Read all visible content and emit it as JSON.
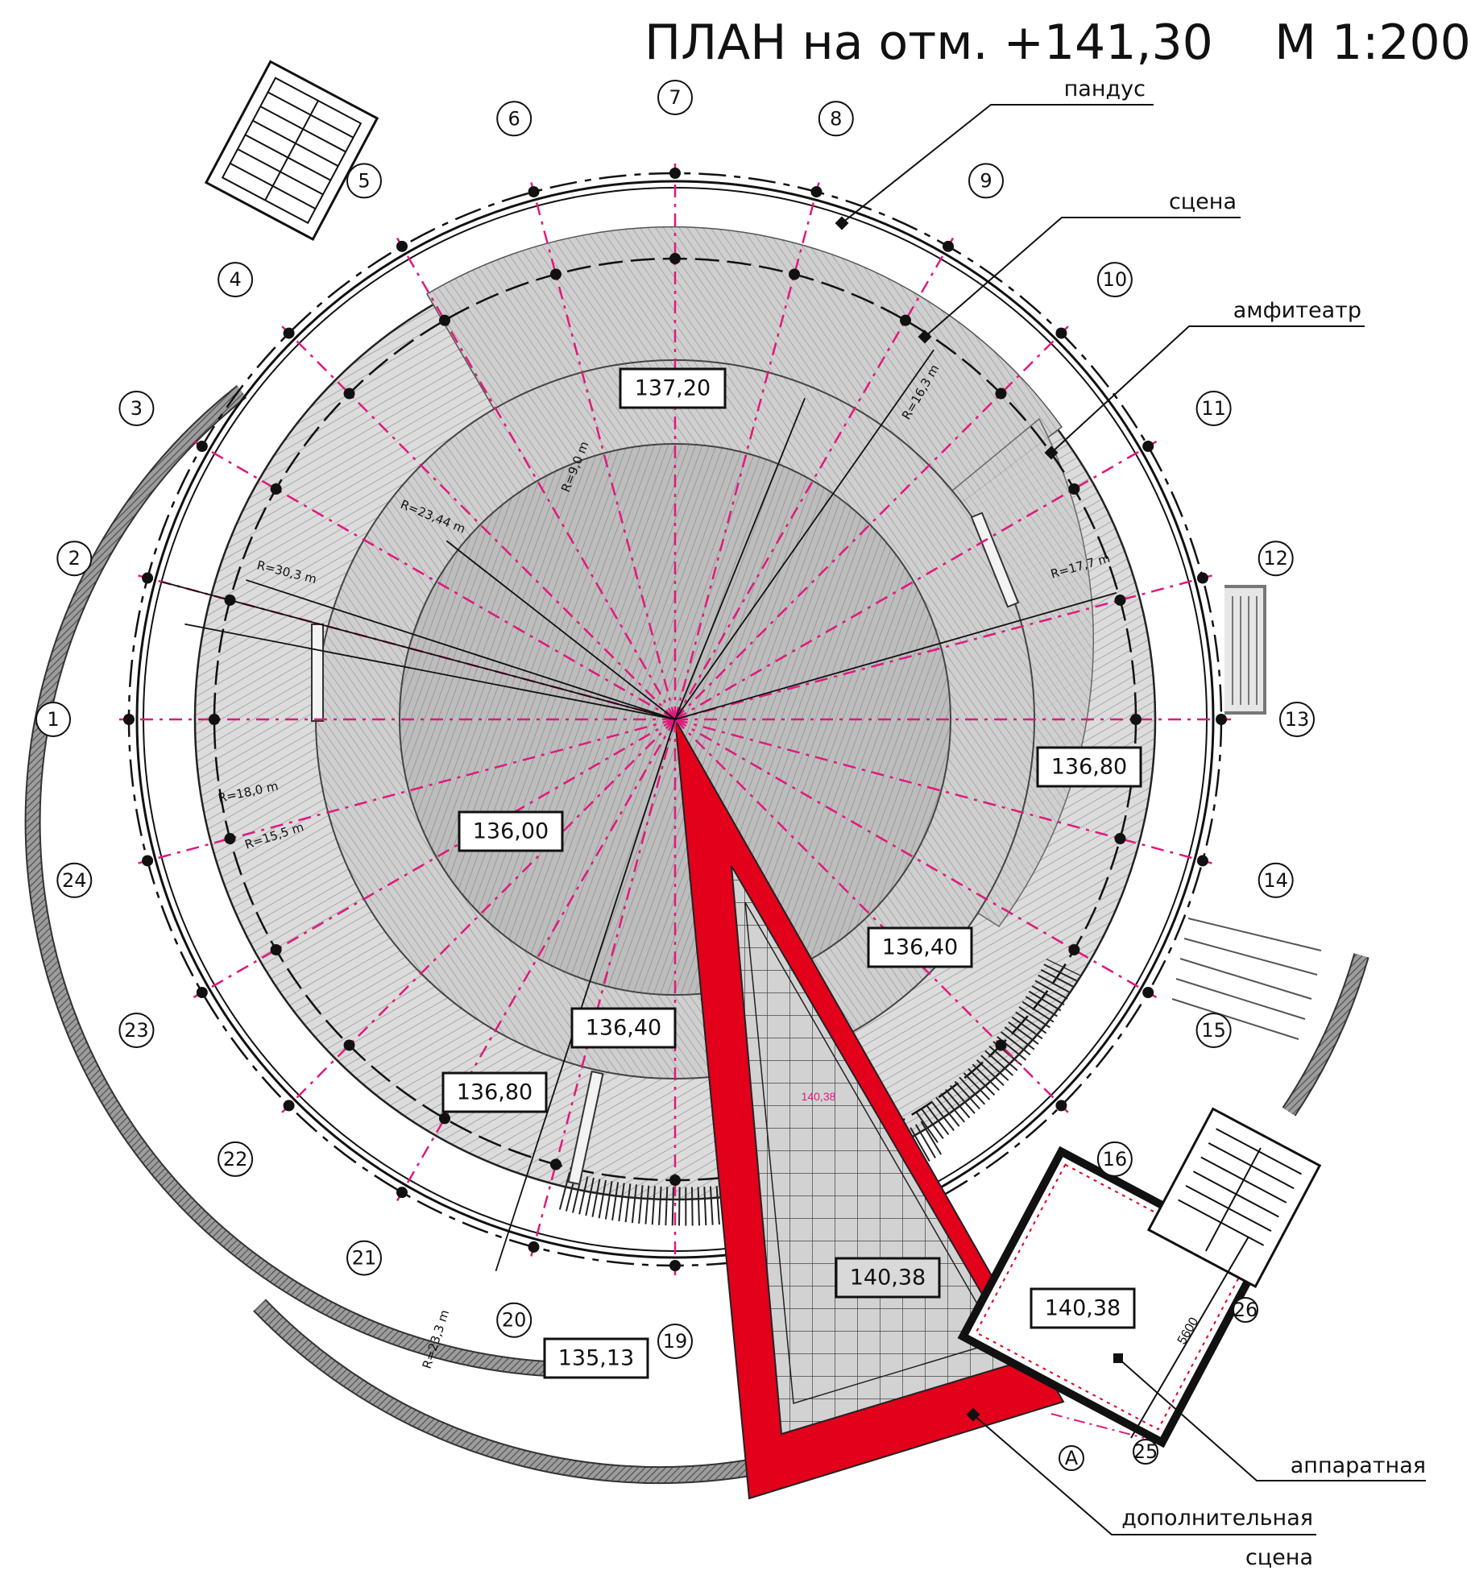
{
  "title": "ПЛАН на отм. +141,30    М 1:200",
  "callouts": {
    "ramp": "пандус",
    "stage": "сцена",
    "amphitheatre": "амфитеатр",
    "control_room": "аппаратная",
    "extra_stage_line1": "дополнительная",
    "extra_stage_line2": "сцена"
  },
  "axes": [
    "1",
    "2",
    "3",
    "4",
    "5",
    "6",
    "7",
    "8",
    "9",
    "10",
    "11",
    "12",
    "13",
    "14",
    "15",
    "16",
    "19",
    "20",
    "21",
    "22",
    "23",
    "24"
  ],
  "extra_axes": [
    "25",
    "26",
    "A"
  ],
  "elevations": {
    "top": "137,20",
    "right": "136,80",
    "center_left": "136,00",
    "right_low": "136,40",
    "bottom": "136,40",
    "bottom_left": "136,80",
    "triangle": "140,38",
    "control_room": "140,38",
    "outside": "135,13",
    "small_mark": "140,38"
  },
  "radii": {
    "r9": "R=9,0 m",
    "r2344": "R=23,44 m",
    "r303": "R=30,3 m",
    "r163": "R=16,3 m",
    "r177": "R=17,7 m",
    "r18": "R=18,0 m",
    "r155": "R=15,5 m",
    "r233": "R=23,3 m"
  },
  "dimension": "5600",
  "colors": {
    "axis": "#e0197d",
    "accent": "#e2001a",
    "hatch": "#c9c9c9",
    "wall": "#7a7a7a"
  }
}
